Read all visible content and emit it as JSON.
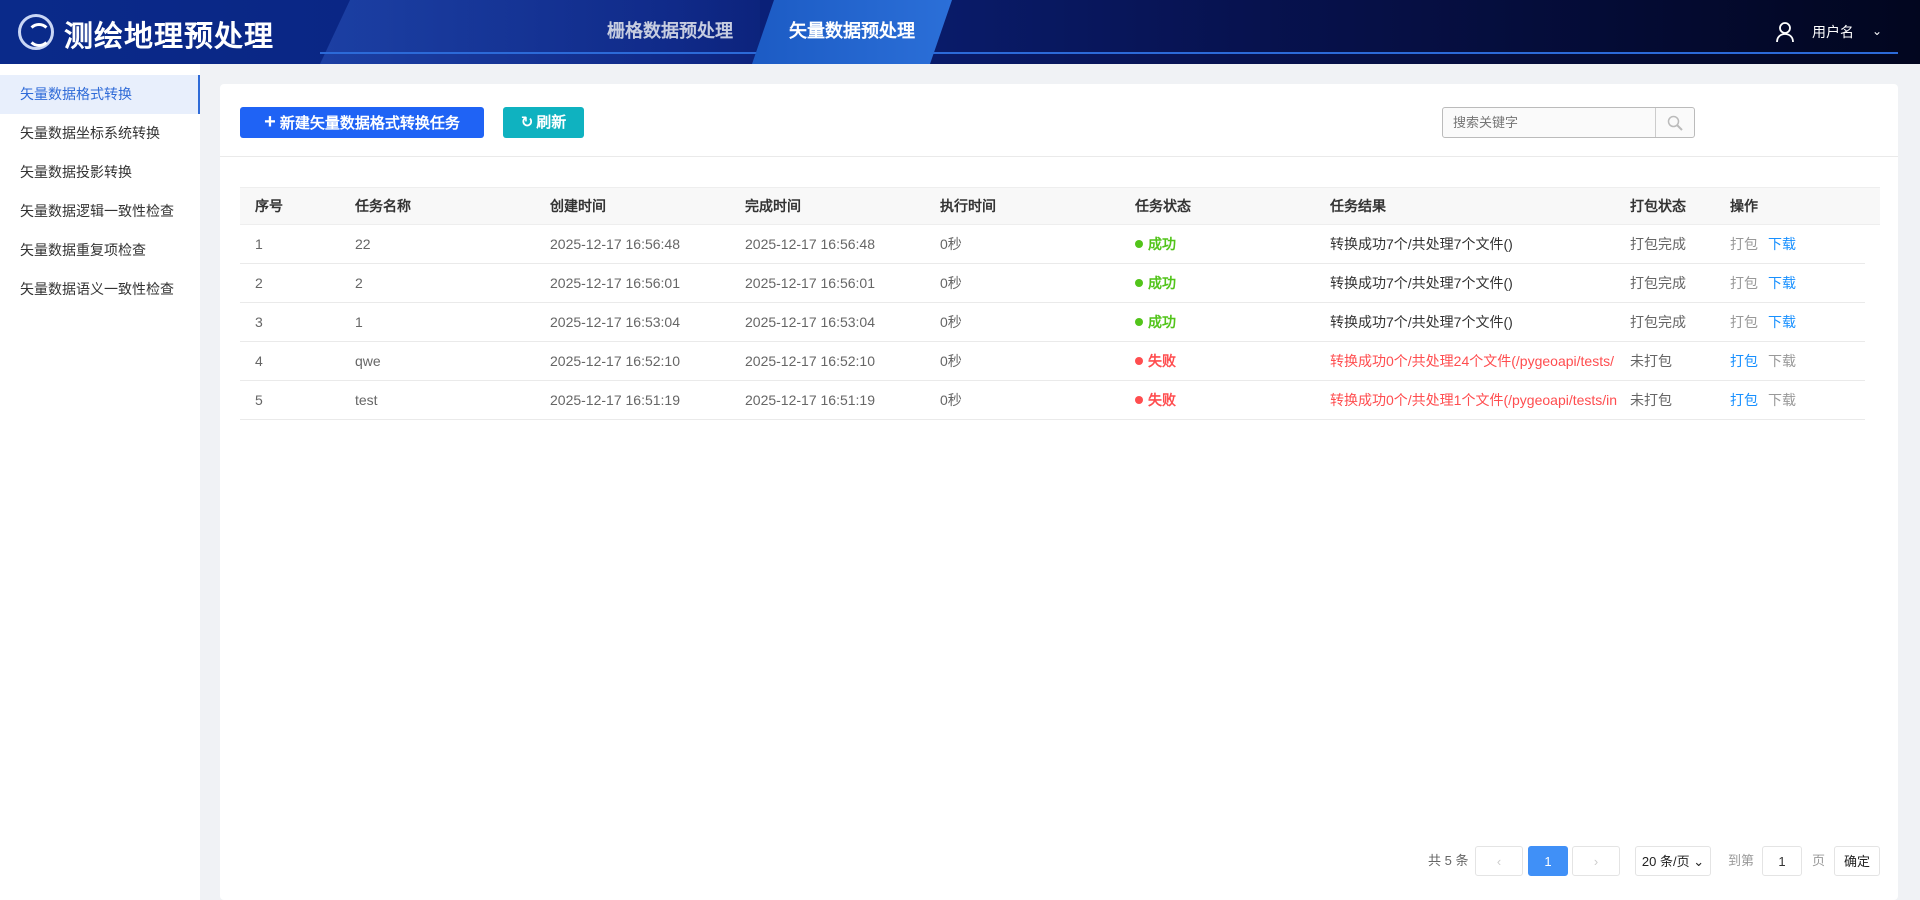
{
  "header": {
    "app_title": "测绘地理预处理",
    "nav": [
      {
        "label": "栅格数据预处理",
        "active": false
      },
      {
        "label": "矢量数据预处理",
        "active": true
      }
    ],
    "user_name": "用户名"
  },
  "sidebar": {
    "items": [
      {
        "label": "矢量数据格式转换",
        "active": true
      },
      {
        "label": "矢量数据坐标系统转换"
      },
      {
        "label": "矢量数据投影转换"
      },
      {
        "label": "矢量数据逻辑一致性检查"
      },
      {
        "label": "矢量数据重复项检查"
      },
      {
        "label": "矢量数据语义一致性检查"
      }
    ]
  },
  "toolbar": {
    "new_label": "新建矢量数据格式转换任务",
    "refresh_label": "刷新",
    "search_placeholder": "搜索关键字",
    "search_value": ""
  },
  "table": {
    "columns": [
      "序号",
      "任务名称",
      "创建时间",
      "完成时间",
      "执行时间",
      "任务状态",
      "任务结果",
      "打包状态",
      "操作"
    ],
    "rows": [
      {
        "index": "1",
        "name": "22",
        "created": "2025-12-17 16:56:48",
        "finished": "2025-12-17 16:56:48",
        "duration": "0秒",
        "status": "成功",
        "result": "转换成功7个/共处理7个文件()",
        "pack_status": "打包完成",
        "action_pack": "打包",
        "action_download": "下载",
        "ok": true
      },
      {
        "index": "2",
        "name": "2",
        "created": "2025-12-17 16:56:01",
        "finished": "2025-12-17 16:56:01",
        "duration": "0秒",
        "status": "成功",
        "result": "转换成功7个/共处理7个文件()",
        "pack_status": "打包完成",
        "action_pack": "打包",
        "action_download": "下载",
        "ok": true
      },
      {
        "index": "3",
        "name": "1",
        "created": "2025-12-17 16:53:04",
        "finished": "2025-12-17 16:53:04",
        "duration": "0秒",
        "status": "成功",
        "result": "转换成功7个/共处理7个文件()",
        "pack_status": "打包完成",
        "action_pack": "打包",
        "action_download": "下载",
        "ok": true
      },
      {
        "index": "4",
        "name": "qwe",
        "created": "2025-12-17 16:52:10",
        "finished": "2025-12-17 16:52:10",
        "duration": "0秒",
        "status": "失败",
        "result": "转换成功0个/共处理24个文件(/pygeoapi/tests/",
        "pack_status": "未打包",
        "action_pack": "打包",
        "action_download": "下载",
        "ok": false
      },
      {
        "index": "5",
        "name": "test",
        "created": "2025-12-17 16:51:19",
        "finished": "2025-12-17 16:51:19",
        "duration": "0秒",
        "status": "失败",
        "result": "转换成功0个/共处理1个文件(/pygeoapi/tests/in",
        "pack_status": "未打包",
        "action_pack": "打包",
        "action_download": "下载",
        "ok": false
      }
    ]
  },
  "pagination": {
    "total_label": "共 5 条",
    "current_page": "1",
    "page_size": "20 条/页",
    "goto_label": "到第",
    "goto_value": "1",
    "page_suffix": "页",
    "confirm_label": "确定"
  },
  "colors": {
    "primary": "#1f63f5",
    "success": "#52c41a",
    "danger": "#ff4d4f",
    "link": "#1890ff",
    "refresh": "#0fb2c0"
  }
}
